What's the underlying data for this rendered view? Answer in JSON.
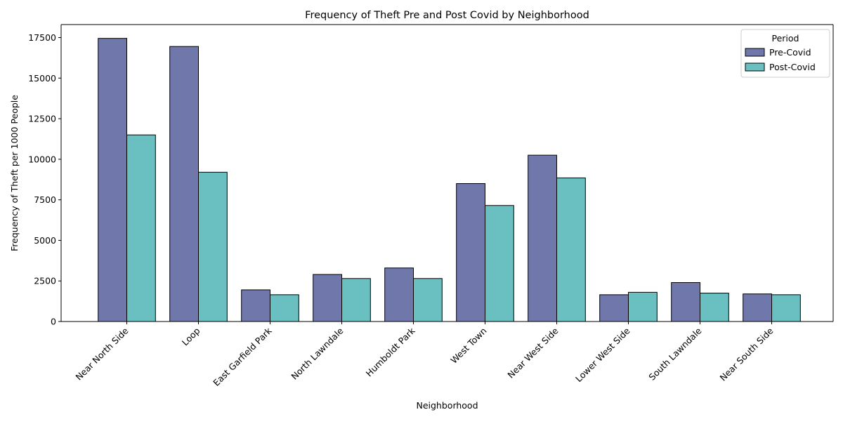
{
  "chart_data": {
    "type": "bar",
    "title": "Frequency of Theft Pre and Post Covid by Neighborhood",
    "xlabel": "Neighborhood",
    "ylabel": "Frequency of Theft per 1000 People",
    "ylim": [
      0,
      18300
    ],
    "yticks": [
      0,
      2500,
      5000,
      7500,
      10000,
      12500,
      15000,
      17500
    ],
    "grid": false,
    "legend": {
      "title": "Period",
      "placement": "top-right"
    },
    "categories": [
      "Near North Side",
      "Loop",
      "East Garfield Park",
      "North Lawndale",
      "Humboldt Park",
      "West Town",
      "Near West Side",
      "Lower West Side",
      "South Lawndale",
      "Near South Side"
    ],
    "series": [
      {
        "name": "Pre-Covid",
        "color": "#6f77ab",
        "values": [
          17450,
          16950,
          1950,
          2900,
          3300,
          8500,
          10250,
          1650,
          2400,
          1700
        ]
      },
      {
        "name": "Post-Covid",
        "color": "#6abfc0",
        "values": [
          11500,
          9200,
          1650,
          2650,
          2650,
          7150,
          8850,
          1800,
          1750,
          1650
        ]
      }
    ]
  }
}
